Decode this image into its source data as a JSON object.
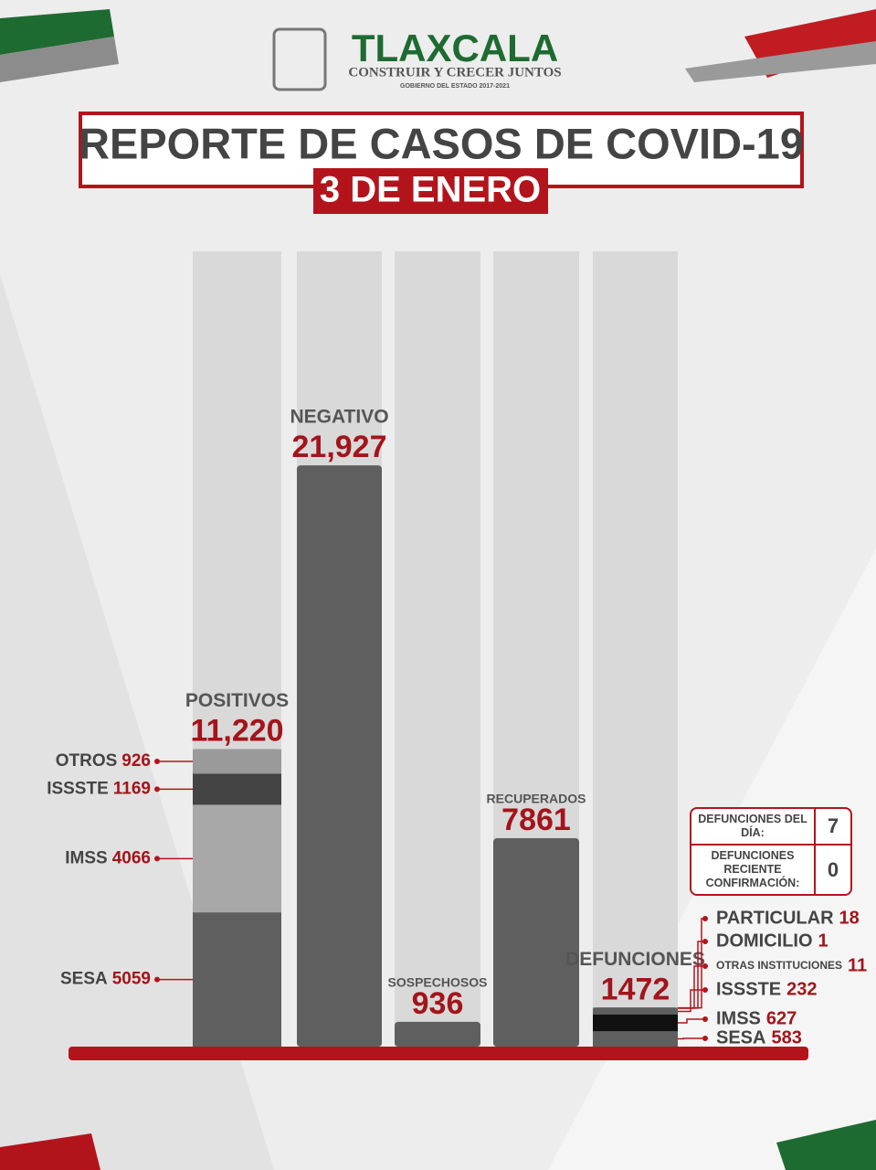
{
  "header": {
    "brand": "TLAXCALA",
    "slogan": "CONSTRUIR Y CRECER JUNTOS",
    "government": "GOBIERNO DEL ESTADO 2017-2021"
  },
  "title": "REPORTE DE CASOS DE COVID-19",
  "date": "3 DE ENERO",
  "chart_data": {
    "type": "bar",
    "ylim": [
      0,
      30000
    ],
    "color": "#5f5f5f",
    "categories": [
      "POSITIVOS",
      "NEGATIVO",
      "SOSPECHOSOS",
      "RECUPERADOS",
      "DEFUNCIONES"
    ],
    "values": [
      11220,
      21927,
      936,
      7861,
      1472
    ],
    "value_labels": [
      "11,220",
      "21,927",
      "936",
      "7861",
      "1472"
    ],
    "segments": [
      [
        {
          "name": "SESA",
          "value": 5059,
          "color": "#5f5f5f"
        },
        {
          "name": "IMSS",
          "value": 4066,
          "color": "#a8a8a8"
        },
        {
          "name": "ISSSTE",
          "value": 1169,
          "color": "#444444"
        },
        {
          "name": "OTROS",
          "value": 926,
          "color": "#9a9a9a"
        }
      ],
      null,
      null,
      null,
      [
        {
          "name": "SESA",
          "value": 583,
          "color": "#5f5f5f"
        },
        {
          "name": "IMSS",
          "value": 627,
          "color": "#111111"
        },
        {
          "name": "ISSSTE",
          "value": 232,
          "color": "#5f5f5f"
        },
        {
          "name": "OTRAS INSTITUCIONES",
          "value": 11,
          "color": "#5f5f5f"
        },
        {
          "name": "DOMICILIO",
          "value": 1,
          "color": "#5f5f5f"
        },
        {
          "name": "PARTICULAR",
          "value": 18,
          "color": "#5f5f5f"
        }
      ]
    ]
  },
  "daily": {
    "rows": [
      {
        "label": "DEFUNCIONES DEL DÍA:",
        "value": 7
      },
      {
        "label": "DEFUNCIONES RECIENTE CONFIRMACIÓN:",
        "value": 0
      }
    ]
  }
}
